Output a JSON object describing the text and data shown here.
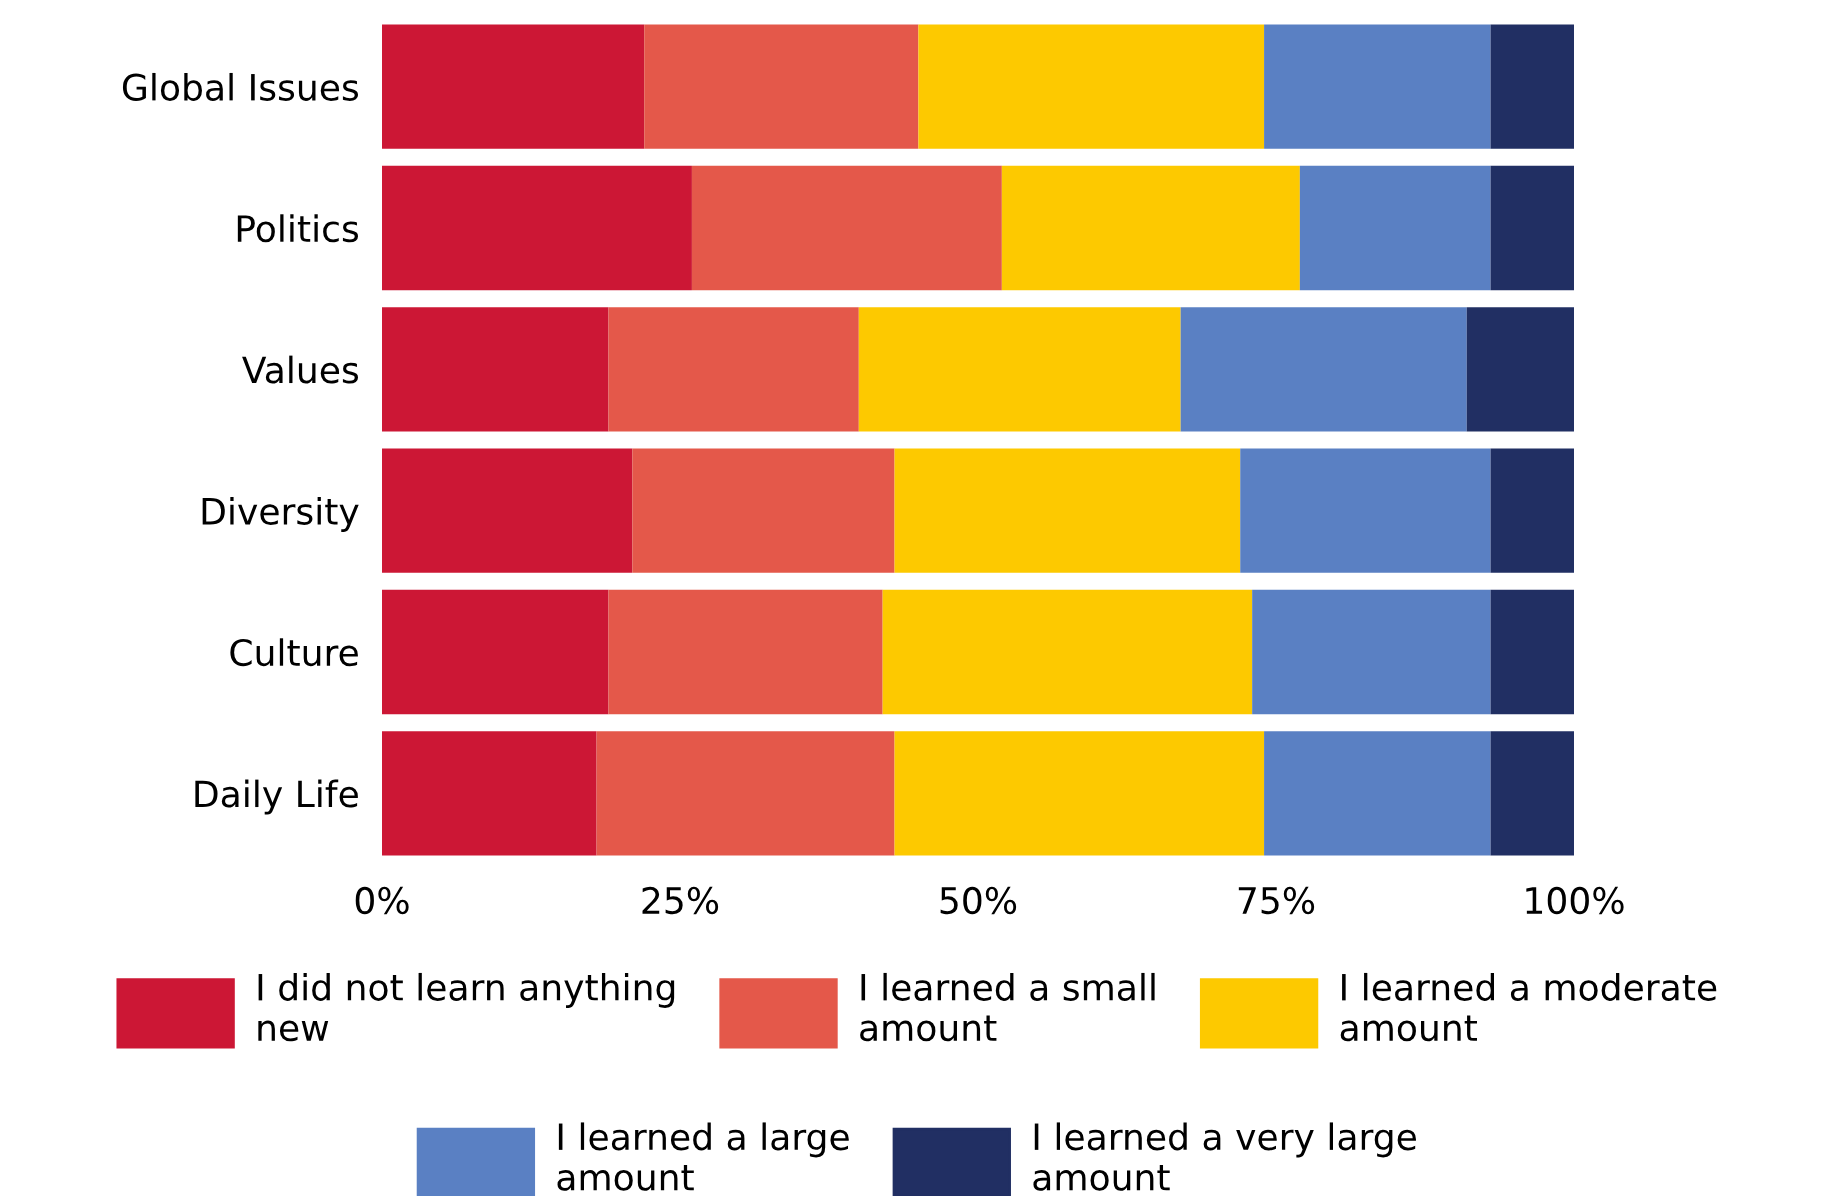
{
  "chart_data": {
    "type": "bar",
    "orientation": "horizontal",
    "stacked": true,
    "categories": [
      "Global Issues",
      "Politics",
      "Values",
      "Diversity",
      "Culture",
      "Daily Life"
    ],
    "series": [
      {
        "name": "I did not learn anything\nnew",
        "color": "#cc1735",
        "values": [
          22,
          26,
          19,
          21,
          19,
          18
        ]
      },
      {
        "name": "I learned a small\namount",
        "color": "#e4584a",
        "values": [
          23,
          26,
          21,
          22,
          23,
          25
        ]
      },
      {
        "name": "I learned a moderate\namount",
        "color": "#fdc900",
        "values": [
          29,
          25,
          27,
          29,
          31,
          31
        ]
      },
      {
        "name": "I learned a large\namount",
        "color": "#5a80c3",
        "values": [
          19,
          16,
          24,
          21,
          20,
          19
        ]
      },
      {
        "name": "I learned a very large\namount",
        "color": "#212f63",
        "values": [
          7,
          7,
          9,
          7,
          7,
          7
        ]
      }
    ],
    "xlim": [
      0,
      100
    ],
    "xticks": [
      {
        "value": 0,
        "label": "0%"
      },
      {
        "value": 25,
        "label": "25%"
      },
      {
        "value": 50,
        "label": "50%"
      },
      {
        "value": 75,
        "label": "75%"
      },
      {
        "value": 100,
        "label": "100%"
      }
    ],
    "grid": false,
    "legend": "bottom"
  }
}
